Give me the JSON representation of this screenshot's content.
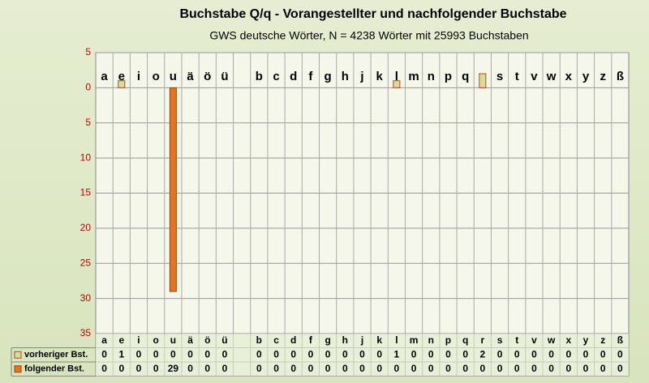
{
  "chart_data": {
    "type": "bar",
    "title": "Buchstabe Q/q - Vorangestellter und nachfolgender Buchstabe",
    "subtitle": "GWS deutsche Wörter, N = 4238 Wörter mit 25993 Buchstaben",
    "categories": [
      "a",
      "e",
      "i",
      "o",
      "u",
      "ä",
      "ö",
      "ü",
      null,
      "b",
      "c",
      "d",
      "f",
      "g",
      "h",
      "j",
      "k",
      "l",
      "m",
      "n",
      "p",
      "q",
      "r",
      "s",
      "t",
      "v",
      "w",
      "x",
      "y",
      "z",
      "ß"
    ],
    "series": [
      {
        "name": "vorheriger Bst.",
        "color": "#d6dca0",
        "edge": "#b05010",
        "values": [
          0,
          -1,
          0,
          0,
          0,
          0,
          0,
          0,
          null,
          0,
          0,
          0,
          0,
          0,
          0,
          0,
          0,
          -1,
          0,
          0,
          0,
          0,
          -2,
          0,
          0,
          0,
          0,
          0,
          0,
          0,
          0
        ],
        "value_labels": [
          "0",
          "1",
          "0",
          "0",
          "0",
          "0",
          "0",
          "0",
          null,
          "0",
          "0",
          "0",
          "0",
          "0",
          "0",
          "0",
          "0",
          "1",
          "0",
          "0",
          "0",
          "0",
          "2",
          "0",
          "0",
          "0",
          "0",
          "0",
          "0",
          "0",
          "0"
        ]
      },
      {
        "name": "folgender Bst.",
        "color": "#e8731e",
        "edge": "#a04010",
        "values": [
          0,
          0,
          0,
          0,
          29,
          0,
          0,
          0,
          null,
          0,
          0,
          0,
          0,
          0,
          0,
          0,
          0,
          0,
          0,
          0,
          0,
          0,
          0,
          0,
          0,
          0,
          0,
          0,
          0,
          0,
          0
        ],
        "value_labels": [
          "0",
          "0",
          "0",
          "0",
          "29",
          "0",
          "0",
          "0",
          null,
          "0",
          "0",
          "0",
          "0",
          "0",
          "0",
          "0",
          "0",
          "0",
          "0",
          "0",
          "0",
          "0",
          "0",
          "0",
          "0",
          "0",
          "0",
          "0",
          "0",
          "0",
          "0"
        ]
      }
    ],
    "ylim": [
      -5,
      35
    ],
    "reversed": true,
    "yticks": [
      {
        "value": -5,
        "label": "5"
      },
      0,
      5,
      10,
      15,
      20,
      25,
      30,
      35
    ],
    "grid": true
  }
}
